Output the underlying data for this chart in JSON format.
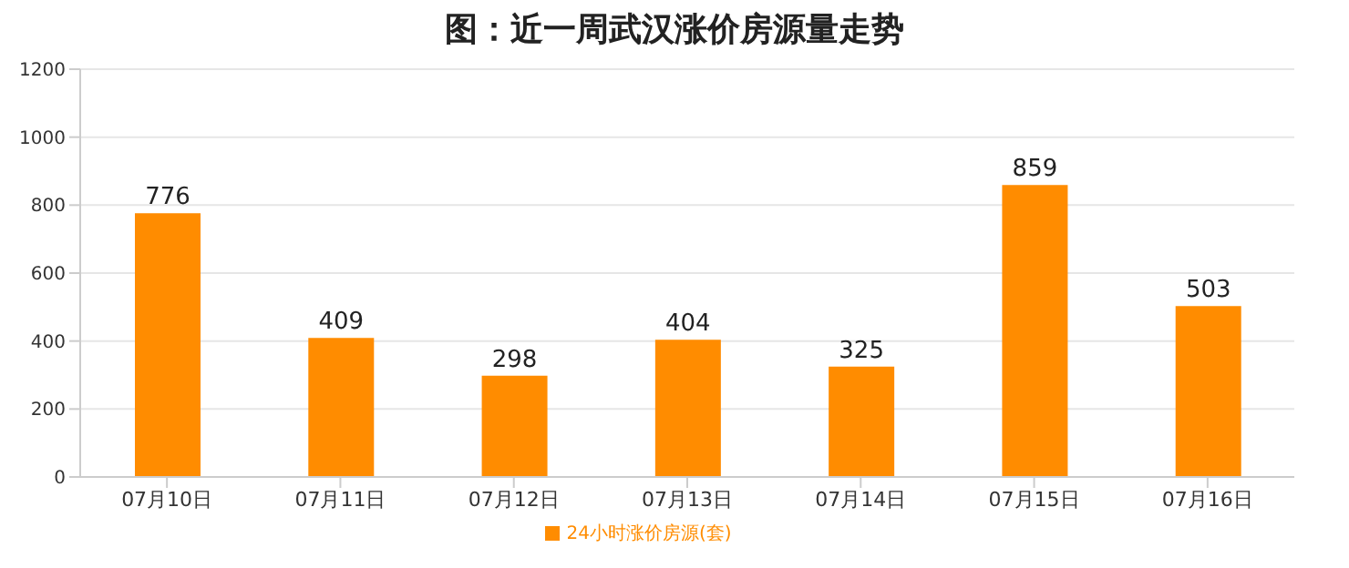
{
  "chart_data": {
    "type": "bar",
    "title": "图：近一周武汉涨价房源量走势",
    "categories": [
      "07月10日",
      "07月11日",
      "07月12日",
      "07月13日",
      "07月14日",
      "07月15日",
      "07月16日"
    ],
    "series": [
      {
        "name": "24小时涨价房源(套)",
        "color": "#ff8c00",
        "values": [
          776,
          409,
          298,
          404,
          325,
          859,
          503
        ]
      }
    ],
    "ylim": [
      0,
      1200
    ],
    "yticks": [
      0,
      200,
      400,
      600,
      800,
      1000,
      1200
    ],
    "grid": "y",
    "legend": "bottom",
    "data_labels": true
  }
}
